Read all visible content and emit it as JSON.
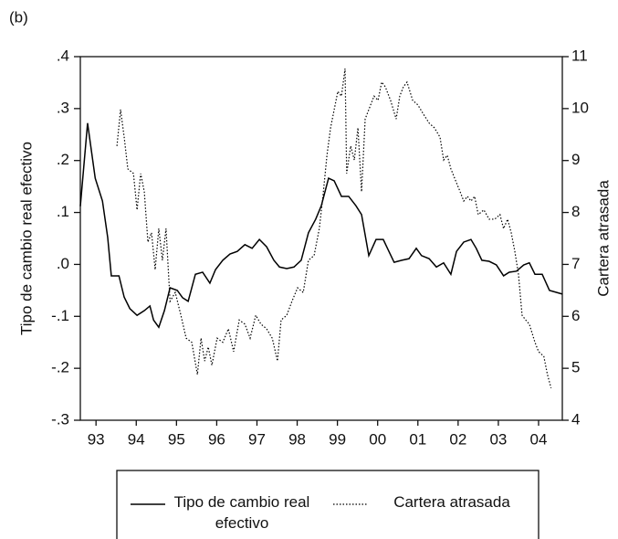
{
  "chart_data": {
    "type": "line",
    "title": "(b)",
    "y_label": "Tipo de cambio real efectivo",
    "y2_label": "Cartera atrasada",
    "xlim": [
      1993.11,
      2005.09
    ],
    "xticks": [
      {
        "value": 1993.5,
        "label": "93"
      },
      {
        "value": 1994.5,
        "label": "94"
      },
      {
        "value": 1995.5,
        "label": "95"
      },
      {
        "value": 1996.5,
        "label": "96"
      },
      {
        "value": 1997.5,
        "label": "97"
      },
      {
        "value": 1998.5,
        "label": "98"
      },
      {
        "value": 1999.5,
        "label": "99"
      },
      {
        "value": 2000.5,
        "label": "00"
      },
      {
        "value": 2001.5,
        "label": "01"
      },
      {
        "value": 2002.5,
        "label": "02"
      },
      {
        "value": 2003.5,
        "label": "03"
      },
      {
        "value": 2004.5,
        "label": "04"
      }
    ],
    "ylim": [
      -0.3,
      0.4
    ],
    "yticks": [
      {
        "value": -0.3,
        "label": "-.3"
      },
      {
        "value": -0.2,
        "label": "-.2"
      },
      {
        "value": -0.1,
        "label": "-.1"
      },
      {
        "value": 0,
        "label": ".0"
      },
      {
        "value": 0.1,
        "label": ".1"
      },
      {
        "value": 0.2,
        "label": ".2"
      },
      {
        "value": 0.3,
        "label": ".3"
      },
      {
        "value": 0.4,
        "label": ".4"
      }
    ],
    "y2lim": [
      4,
      11
    ],
    "y2ticks": [
      4,
      5,
      6,
      7,
      8,
      9,
      10,
      11
    ],
    "series": [
      {
        "name": "Tipo de cambio real efectivo",
        "color": "#000000",
        "style": "solid",
        "axis": "y",
        "x": [
          1993.11,
          1993.29,
          1993.48,
          1993.66,
          1993.79,
          1993.88,
          1994.07,
          1994.2,
          1994.34,
          1994.52,
          1994.7,
          1994.84,
          1994.93,
          1995.06,
          1995.2,
          1995.34,
          1995.52,
          1995.65,
          1995.79,
          1995.97,
          1996.15,
          1996.33,
          1996.47,
          1996.65,
          1996.83,
          1997.01,
          1997.2,
          1997.38,
          1997.56,
          1997.74,
          1997.92,
          1998.06,
          1998.24,
          1998.42,
          1998.6,
          1998.78,
          1998.96,
          1999.1,
          1999.28,
          1999.42,
          1999.6,
          1999.78,
          1999.96,
          2000.1,
          2000.28,
          2000.46,
          2000.64,
          2000.78,
          2000.91,
          2001.1,
          2001.28,
          2001.46,
          2001.59,
          2001.78,
          2001.96,
          2002.14,
          2002.32,
          2002.46,
          2002.64,
          2002.82,
          2002.95,
          2003.09,
          2003.27,
          2003.45,
          2003.63,
          2003.77,
          2003.95,
          2004.13,
          2004.27,
          2004.41,
          2004.59,
          2004.77,
          2004.95,
          2005.09
        ],
        "values": [
          0.112,
          0.272,
          0.166,
          0.122,
          0.052,
          -0.022,
          -0.022,
          -0.063,
          -0.085,
          -0.098,
          -0.089,
          -0.08,
          -0.107,
          -0.121,
          -0.089,
          -0.045,
          -0.05,
          -0.064,
          -0.071,
          -0.019,
          -0.015,
          -0.036,
          -0.01,
          0.008,
          0.02,
          0.025,
          0.038,
          0.031,
          0.048,
          0.034,
          0.008,
          -0.005,
          -0.008,
          -0.005,
          0.008,
          0.061,
          0.087,
          0.113,
          0.166,
          0.161,
          0.131,
          0.131,
          0.113,
          0.096,
          0.017,
          0.048,
          0.048,
          0.025,
          0.004,
          0.008,
          0.011,
          0.031,
          0.017,
          0.011,
          -0.005,
          0.003,
          -0.019,
          0.025,
          0.043,
          0.048,
          0.031,
          0.008,
          0.006,
          -0.001,
          -0.022,
          -0.015,
          -0.013,
          -0.001,
          0.003,
          -0.019,
          -0.019,
          -0.05,
          -0.054,
          -0.057
        ]
      },
      {
        "name": "Cartera atrasada",
        "color": "#000000",
        "style": "dotted",
        "axis": "y2",
        "x": [
          1994.02,
          1994.11,
          1994.2,
          1994.29,
          1994.43,
          1994.52,
          1994.61,
          1994.7,
          1994.79,
          1994.88,
          1994.97,
          1995.06,
          1995.15,
          1995.24,
          1995.34,
          1995.47,
          1995.61,
          1995.74,
          1995.88,
          1996.02,
          1996.11,
          1996.2,
          1996.29,
          1996.38,
          1996.51,
          1996.65,
          1996.79,
          1996.92,
          1997.06,
          1997.2,
          1997.33,
          1997.47,
          1997.6,
          1997.74,
          1997.88,
          1998.01,
          1998.1,
          1998.24,
          1998.37,
          1998.51,
          1998.65,
          1998.78,
          1998.92,
          1999.05,
          1999.14,
          1999.24,
          1999.33,
          1999.42,
          1999.51,
          1999.6,
          1999.69,
          1999.73,
          1999.83,
          1999.92,
          2000.01,
          2000.1,
          2000.19,
          2000.28,
          2000.41,
          2000.51,
          2000.6,
          2000.69,
          2000.82,
          2000.96,
          2001.05,
          2001.14,
          2001.23,
          2001.37,
          2001.5,
          2001.64,
          2001.78,
          2001.91,
          2002.05,
          2002.14,
          2002.23,
          2002.32,
          2002.46,
          2002.55,
          2002.64,
          2002.73,
          2002.82,
          2002.91,
          2003.0,
          2003.14,
          2003.27,
          2003.41,
          2003.54,
          2003.63,
          2003.73,
          2003.82,
          2003.91,
          2004.0,
          2004.09,
          2004.18,
          2004.27,
          2004.41,
          2004.5,
          2004.63,
          2004.72,
          2004.81
        ],
        "values": [
          9.28,
          9.98,
          9.45,
          8.84,
          8.75,
          8.05,
          8.75,
          8.4,
          7.43,
          7.61,
          6.9,
          7.69,
          7.08,
          7.69,
          6.29,
          6.46,
          6.02,
          5.58,
          5.5,
          4.88,
          5.58,
          5.14,
          5.41,
          5.06,
          5.58,
          5.5,
          5.76,
          5.32,
          5.93,
          5.85,
          5.58,
          6.02,
          5.85,
          5.76,
          5.58,
          5.14,
          5.93,
          6.02,
          6.29,
          6.55,
          6.46,
          7.08,
          7.17,
          7.69,
          8.31,
          9.1,
          9.63,
          9.98,
          10.33,
          10.24,
          10.77,
          8.75,
          9.28,
          9.01,
          9.63,
          8.4,
          9.8,
          9.98,
          10.24,
          10.16,
          10.51,
          10.42,
          10.16,
          9.8,
          10.24,
          10.42,
          10.51,
          10.16,
          10.07,
          9.89,
          9.72,
          9.63,
          9.45,
          9.01,
          9.1,
          8.84,
          8.57,
          8.4,
          8.22,
          8.31,
          8.22,
          8.31,
          7.96,
          8.05,
          7.87,
          7.87,
          7.96,
          7.69,
          7.87,
          7.61,
          7.25,
          6.81,
          6.02,
          5.93,
          5.85,
          5.5,
          5.32,
          5.23,
          4.88,
          4.62
        ]
      }
    ]
  }
}
